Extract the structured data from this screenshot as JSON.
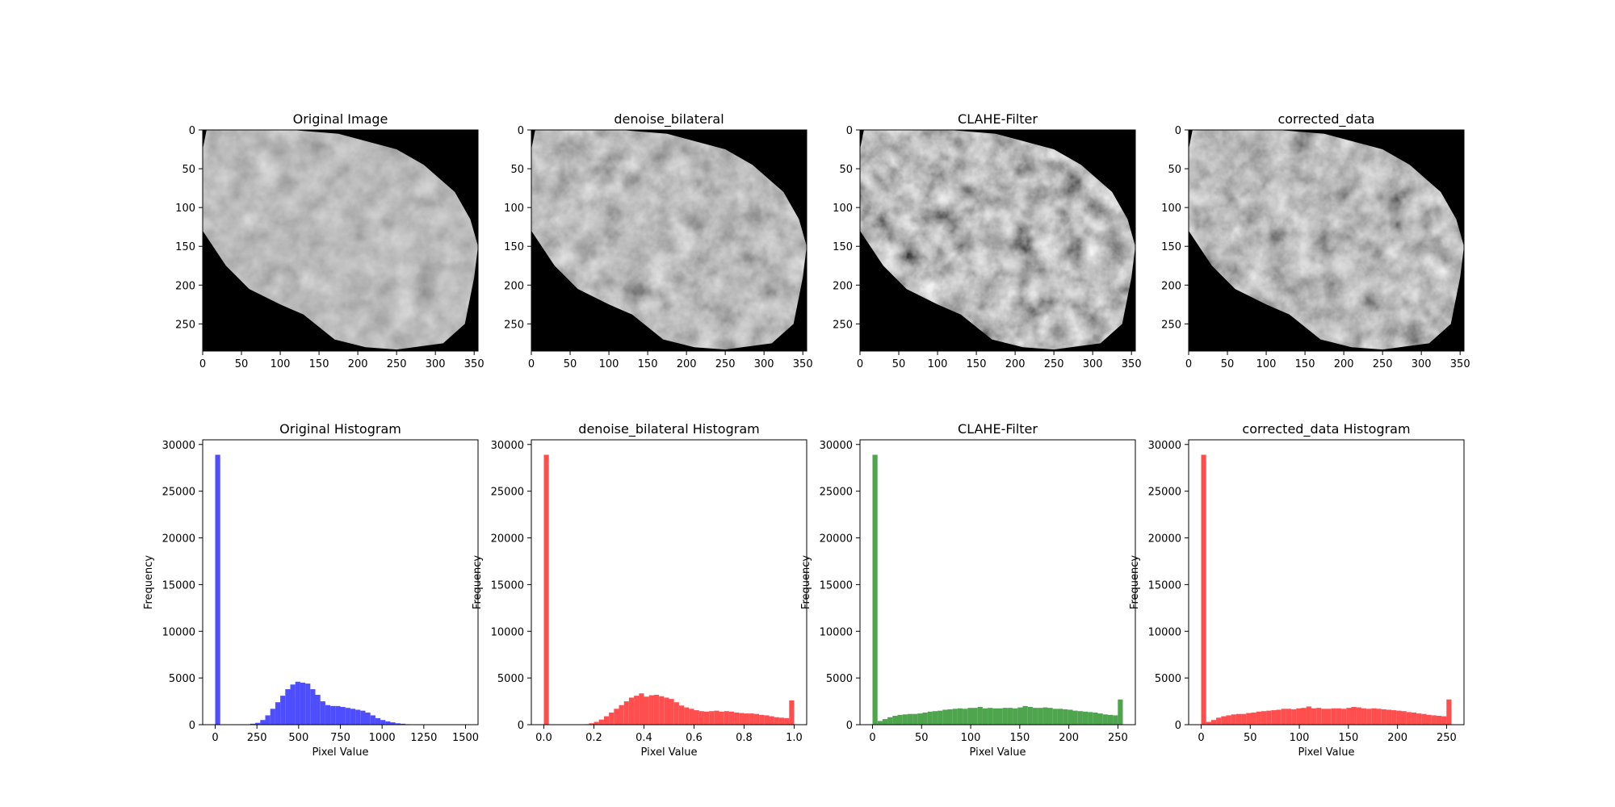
{
  "figure": {
    "image_titles": [
      "Original Image",
      "denoise_bilateral",
      "CLAHE-Filter",
      "corrected_data"
    ],
    "histogram_titles": [
      "Original Histogram",
      "denoise_bilateral Histogram",
      "CLAHE-Filter",
      "corrected_data Histogram"
    ]
  },
  "chart_data": [
    {
      "type": "image",
      "title": "Original Image",
      "xlim": [
        0,
        355
      ],
      "ylim": [
        285,
        0
      ],
      "xticks": [
        0,
        50,
        100,
        150,
        200,
        250,
        300,
        350
      ],
      "yticks": [
        0,
        50,
        100,
        150,
        200,
        250
      ],
      "contrast": "low"
    },
    {
      "type": "image",
      "title": "denoise_bilateral",
      "xlim": [
        0,
        355
      ],
      "ylim": [
        285,
        0
      ],
      "xticks": [
        0,
        50,
        100,
        150,
        200,
        250,
        300,
        350
      ],
      "yticks": [
        0,
        50,
        100,
        150,
        200,
        250
      ],
      "contrast": "medium"
    },
    {
      "type": "image",
      "title": "CLAHE-Filter",
      "xlim": [
        0,
        355
      ],
      "ylim": [
        285,
        0
      ],
      "xticks": [
        0,
        50,
        100,
        150,
        200,
        250,
        300,
        350
      ],
      "yticks": [
        0,
        50,
        100,
        150,
        200,
        250
      ],
      "contrast": "high"
    },
    {
      "type": "image",
      "title": "corrected_data",
      "xlim": [
        0,
        355
      ],
      "ylim": [
        285,
        0
      ],
      "xticks": [
        0,
        50,
        100,
        150,
        200,
        250,
        300,
        350
      ],
      "yticks": [
        0,
        50,
        100,
        150,
        200,
        250
      ],
      "contrast": "medium-high"
    },
    {
      "type": "bar",
      "title": "Original Histogram",
      "xlabel": "Pixel Value",
      "ylabel": "Frequency",
      "xlim": [
        -75,
        1575
      ],
      "ylim": [
        0,
        30500
      ],
      "xticks": [
        0,
        250,
        500,
        750,
        1000,
        1250,
        1500
      ],
      "xtick_labels": [
        "0",
        "250",
        "500",
        "750",
        "1000",
        "1250",
        "1500"
      ],
      "yticks": [
        0,
        5000,
        10000,
        15000,
        20000,
        25000,
        30000
      ],
      "color": "#4444ff",
      "bin_start": 0,
      "bin_width": 30,
      "values": [
        28900,
        0,
        0,
        0,
        0,
        0,
        0,
        100,
        200,
        500,
        1000,
        1700,
        2400,
        3100,
        3800,
        4300,
        4600,
        4500,
        4400,
        3800,
        3200,
        2500,
        2100,
        2000,
        2000,
        1900,
        1800,
        1700,
        1600,
        1500,
        1300,
        1000,
        700,
        500,
        350,
        250,
        150,
        100,
        50,
        30
      ]
    },
    {
      "type": "bar",
      "title": "denoise_bilateral Histogram",
      "xlabel": "Pixel Value",
      "ylabel": "Frequency",
      "xlim": [
        -0.05,
        1.05
      ],
      "ylim": [
        0,
        30500
      ],
      "xticks": [
        0,
        0.2,
        0.4,
        0.6,
        0.8,
        1.0
      ],
      "xtick_labels": [
        "0.0",
        "0.2",
        "0.4",
        "0.6",
        "0.8",
        "1.0"
      ],
      "yticks": [
        0,
        5000,
        10000,
        15000,
        20000,
        25000,
        30000
      ],
      "color": "#ff4444",
      "bin_start": 0,
      "bin_width": 0.02,
      "values": [
        28900,
        0,
        0,
        0,
        0,
        0,
        0,
        0,
        50,
        150,
        300,
        550,
        900,
        1300,
        1700,
        2100,
        2500,
        2900,
        3100,
        3350,
        3000,
        3150,
        3200,
        3050,
        2900,
        2750,
        2400,
        2050,
        1850,
        1700,
        1550,
        1450,
        1400,
        1450,
        1500,
        1400,
        1450,
        1400,
        1300,
        1250,
        1200,
        1200,
        1150,
        1050,
        1000,
        900,
        800,
        750,
        700,
        2600
      ]
    },
    {
      "type": "bar",
      "title": "CLAHE-Filter",
      "xlabel": "Pixel Value",
      "ylabel": "Frequency",
      "xlim": [
        -12.75,
        267.75
      ],
      "ylim": [
        0,
        30500
      ],
      "xticks": [
        0,
        50,
        100,
        150,
        200,
        250
      ],
      "xtick_labels": [
        "0",
        "50",
        "100",
        "150",
        "200",
        "250"
      ],
      "yticks": [
        0,
        5000,
        10000,
        15000,
        20000,
        25000,
        30000
      ],
      "color": "#44a044",
      "bin_start": 0,
      "bin_width": 5.1,
      "values": [
        28900,
        400,
        600,
        800,
        950,
        1050,
        1100,
        1150,
        1150,
        1200,
        1300,
        1400,
        1450,
        1500,
        1600,
        1650,
        1700,
        1750,
        1700,
        1800,
        1800,
        1900,
        1750,
        1800,
        1750,
        1750,
        1800,
        1800,
        1750,
        1850,
        2000,
        1900,
        1800,
        1800,
        1850,
        1800,
        1700,
        1700,
        1650,
        1600,
        1500,
        1450,
        1400,
        1350,
        1300,
        1200,
        1100,
        1050,
        1000,
        2700
      ]
    },
    {
      "type": "bar",
      "title": "corrected_data Histogram",
      "xlabel": "Pixel Value",
      "ylabel": "Frequency",
      "xlim": [
        -12.75,
        267.75
      ],
      "ylim": [
        0,
        30500
      ],
      "xticks": [
        0,
        50,
        100,
        150,
        200,
        250
      ],
      "xtick_labels": [
        "0",
        "50",
        "100",
        "150",
        "200",
        "250"
      ],
      "yticks": [
        0,
        5000,
        10000,
        15000,
        20000,
        25000,
        30000
      ],
      "color": "#ff4444",
      "bin_start": 0,
      "bin_width": 5.1,
      "values": [
        28900,
        300,
        500,
        750,
        900,
        1000,
        1100,
        1150,
        1150,
        1250,
        1300,
        1400,
        1450,
        1500,
        1550,
        1600,
        1700,
        1700,
        1650,
        1750,
        1800,
        1950,
        1750,
        1800,
        1700,
        1700,
        1750,
        1750,
        1700,
        1800,
        1900,
        1850,
        1750,
        1700,
        1750,
        1700,
        1650,
        1600,
        1550,
        1500,
        1450,
        1350,
        1300,
        1200,
        1150,
        1050,
        1000,
        950,
        900,
        2700
      ]
    }
  ]
}
